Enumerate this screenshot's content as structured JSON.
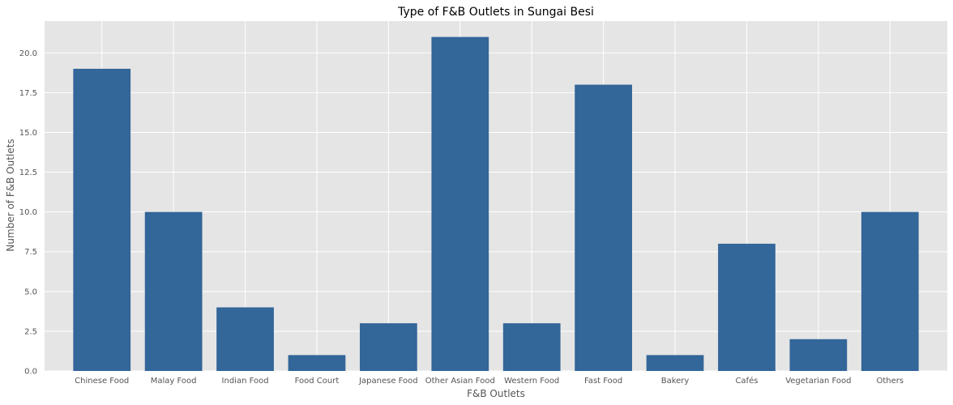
{
  "chart_data": {
    "type": "bar",
    "title": "Type of F&B Outlets in Sungai Besi",
    "xlabel": "F&B Outlets",
    "ylabel": "Number of F&B Outlets",
    "categories": [
      "Chinese Food",
      "Malay Food",
      "Indian Food",
      "Food Court",
      "Japanese Food",
      "Other Asian Food",
      "Western Food",
      "Fast Food",
      "Bakery",
      "Cafés",
      "Vegetarian Food",
      "Others"
    ],
    "values": [
      19,
      10,
      4,
      1,
      3,
      21,
      3,
      18,
      1,
      8,
      2,
      10
    ],
    "ylim": [
      0,
      22
    ],
    "yticks": [
      "0.0",
      "2.5",
      "5.0",
      "7.5",
      "10.0",
      "12.5",
      "15.0",
      "17.5",
      "20.0"
    ],
    "grid": true,
    "legend": "none",
    "colors": {
      "bar": "#336699",
      "plot_background": "#e5e5e5",
      "grid": "#ffffff"
    }
  }
}
